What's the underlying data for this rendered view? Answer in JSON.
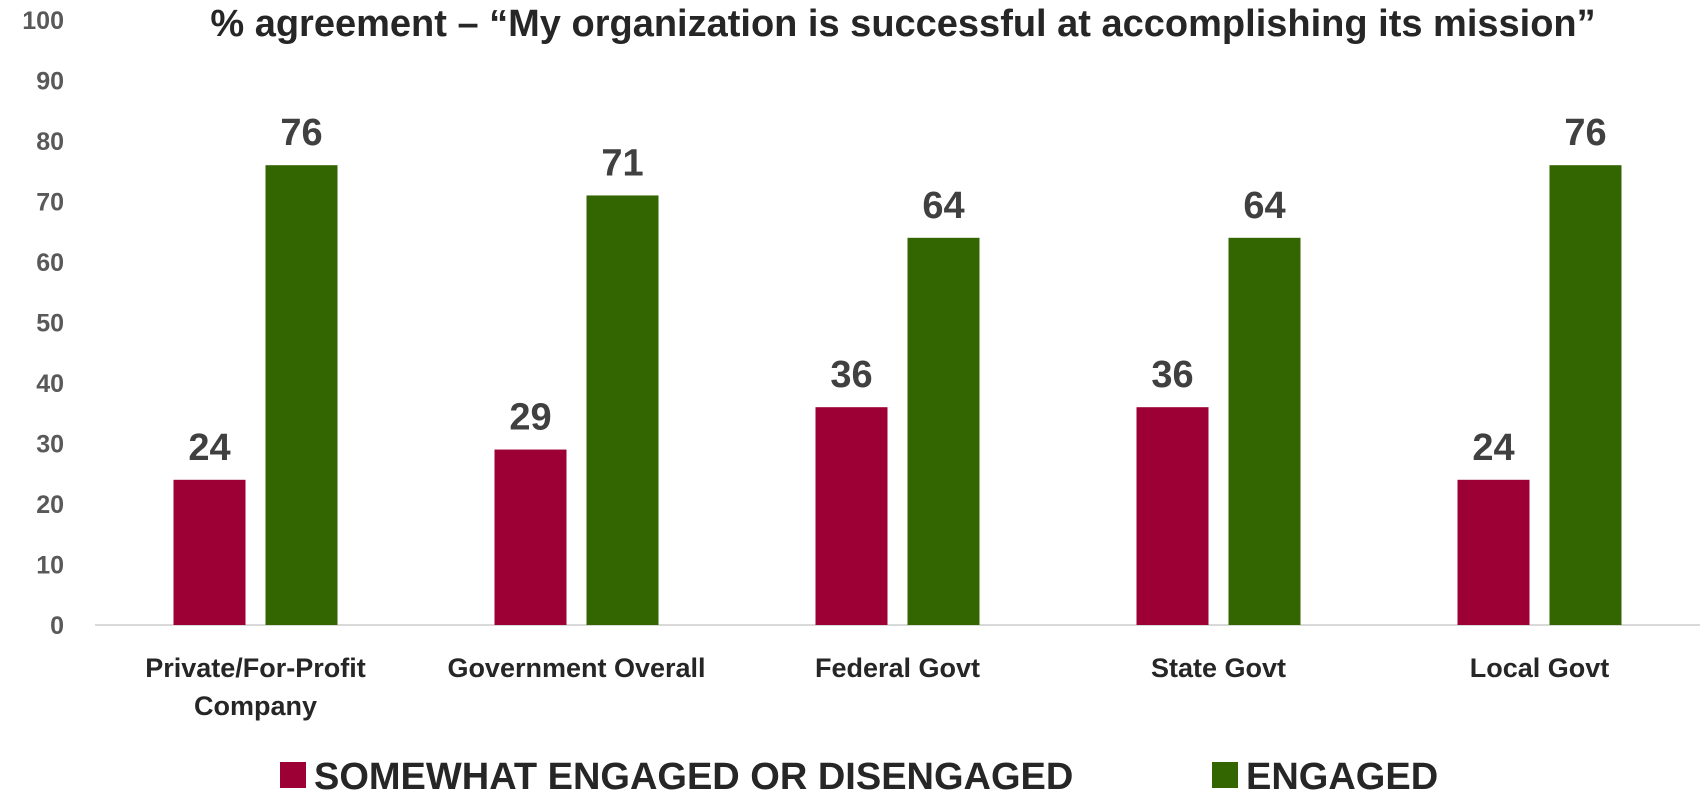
{
  "chart_data": {
    "type": "bar",
    "title": "% agreement – “My organization is successful at accomplishing its mission”",
    "xlabel": "",
    "ylabel": "",
    "ylim": [
      0,
      100
    ],
    "yticks": [
      0,
      10,
      20,
      30,
      40,
      50,
      60,
      70,
      80,
      90,
      100
    ],
    "grid": false,
    "legend_position": "bottom",
    "categories": [
      [
        "Private/For-Profit",
        "Company"
      ],
      [
        "Government Overall"
      ],
      [
        "Federal Govt"
      ],
      [
        "State Govt"
      ],
      [
        "Local Govt"
      ]
    ],
    "series": [
      {
        "name": "SOMEWHAT ENGAGED OR DISENGAGED",
        "color": "#9C0034",
        "values": [
          24,
          29,
          36,
          36,
          24
        ]
      },
      {
        "name": "ENGAGED",
        "color": "#336600",
        "values": [
          76,
          71,
          64,
          64,
          76
        ]
      }
    ]
  }
}
